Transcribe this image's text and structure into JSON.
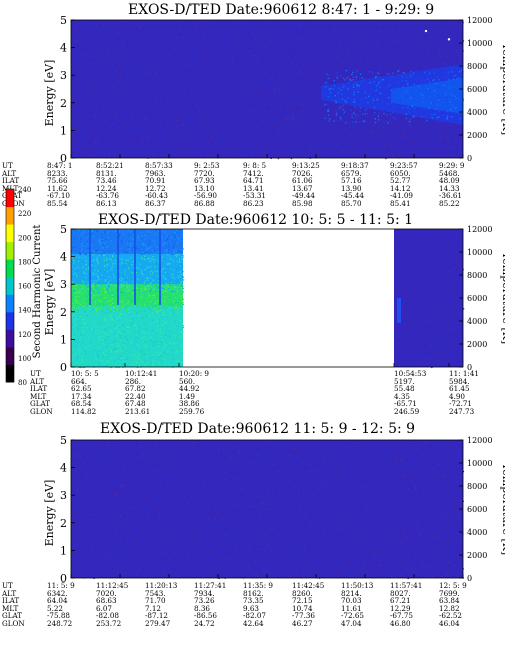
{
  "chart_data": [
    {
      "type": "heatmap",
      "title": "EXOS-D/TED   Date:960612  8:47: 1 - 9:29: 9",
      "ylabel": "Energy [eV]",
      "ylabel_right": "Temperature [K]",
      "ylim": [
        0,
        5
      ],
      "yticks": [
        "0",
        "1",
        "2",
        "3",
        "4",
        "5"
      ],
      "ylim_right": [
        0,
        12000
      ],
      "yticks_right": [
        "0",
        "2000",
        "4000",
        "6000",
        "8000",
        "10000",
        "12000"
      ],
      "x": [
        "8:47: 1",
        "8:52:21",
        "8:57:33",
        "9: 2:53",
        "9: 8: 5",
        "9:13:25",
        "9:18:37",
        "9:23:57",
        "9:29: 9"
      ],
      "rows": [
        {
          "label": "UT",
          "values": [
            "8:47: 1",
            "8:52:21",
            "8:57:33",
            "9: 2:53",
            "9: 8: 5",
            "9:13:25",
            "9:18:37",
            "9:23:57",
            "9:29: 9"
          ]
        },
        {
          "label": "ALT",
          "values": [
            "8233.",
            "8131.",
            "7963.",
            "7720.",
            "7412.",
            "7026.",
            "6579.",
            "6050.",
            "5468."
          ]
        },
        {
          "label": "ILAT",
          "values": [
            "75.66",
            "73.46",
            "70.91",
            "67.93",
            "64.71",
            "61.06",
            "57.16",
            "52.77",
            "48.09"
          ]
        },
        {
          "label": "MLT",
          "values": [
            "11.62",
            "12.24",
            "12.72",
            "13.10",
            "13.41",
            "13.67",
            "13.90",
            "14.12",
            "14.33"
          ]
        },
        {
          "label": "GLAT",
          "values": [
            "-67.10",
            "-63.76",
            "-60.43",
            "-56.90",
            "-53.31",
            "-49.44",
            "-45.44",
            "-41.09",
            "-36.61"
          ]
        },
        {
          "label": "GLON",
          "values": [
            "85.54",
            "86.13",
            "86.37",
            "86.88",
            "86.23",
            "85.98",
            "85.70",
            "85.41",
            "85.22"
          ]
        }
      ]
    },
    {
      "type": "heatmap",
      "title": "EXOS-D/TED   Date:960612  10: 5: 5 - 11: 5: 1",
      "ylabel": "Energy [eV]",
      "ylabel_right": "Temperature [K]",
      "ylim": [
        0,
        5
      ],
      "yticks": [
        "0",
        "1",
        "2",
        "3",
        "4",
        "5"
      ],
      "ylim_right": [
        0,
        12000
      ],
      "yticks_right": [
        "0",
        "2000",
        "4000",
        "6000",
        "8000",
        "10000",
        "12000"
      ],
      "colorbar": {
        "label": "Second Harmonic Current",
        "range": [
          80,
          240
        ],
        "ticks": [
          "80",
          "100",
          "120",
          "140",
          "160",
          "180",
          "200",
          "220",
          "240"
        ],
        "colors": [
          "#000000",
          "#3a0050",
          "#3c0fa0",
          "#1e32e6",
          "#0a82ff",
          "#00c8c8",
          "#00dc50",
          "#a0f000",
          "#ffff00",
          "#ffa000",
          "#ff0000"
        ]
      },
      "rows": [
        {
          "label": "UT",
          "values": [
            "10: 5: 5",
            "10:12:41",
            "10:20: 9",
            "10:54:53",
            "11: 1:41"
          ]
        },
        {
          "label": "ALT",
          "values": [
            "664.",
            "286.",
            "560.",
            "5197.",
            "5984."
          ]
        },
        {
          "label": "ILAT",
          "values": [
            "62.65",
            "67.82",
            "44.92",
            "55.48",
            "61.45"
          ]
        },
        {
          "label": "MLT",
          "values": [
            "17.34",
            "22.40",
            "1.49",
            "4.35",
            "4.90"
          ]
        },
        {
          "label": "GLAT",
          "values": [
            "68.54",
            "67.48",
            "38.86",
            "-65.71",
            "-72.71"
          ]
        },
        {
          "label": "GLON",
          "values": [
            "114.82",
            "213.61",
            "259.76",
            "246.59",
            "247.73"
          ]
        }
      ]
    },
    {
      "type": "heatmap",
      "title": "EXOS-D/TED   Date:960612  11: 5: 9 - 12: 5: 9",
      "ylabel": "Energy [eV]",
      "ylabel_right": "Temperature [K]",
      "ylim": [
        0,
        5
      ],
      "yticks": [
        "0",
        "1",
        "2",
        "3",
        "4",
        "5"
      ],
      "ylim_right": [
        0,
        12000
      ],
      "yticks_right": [
        "0",
        "2000",
        "4000",
        "6000",
        "8000",
        "10000",
        "12000"
      ],
      "x": [
        "11: 5: 9",
        "11:12:45",
        "11:20:13",
        "11:27:41",
        "11:35: 9",
        "11:42:45",
        "11:50:13",
        "11:57:41",
        "12: 5: 9"
      ],
      "rows": [
        {
          "label": "UT",
          "values": [
            "11: 5: 9",
            "11:12:45",
            "11:20:13",
            "11:27:41",
            "11:35: 9",
            "11:42:45",
            "11:50:13",
            "11:57:41",
            "12: 5: 9"
          ]
        },
        {
          "label": "ALT",
          "values": [
            "6342.",
            "7020.",
            "7543.",
            "7934.",
            "8162.",
            "8260.",
            "8214.",
            "8027.",
            "7699."
          ]
        },
        {
          "label": "ILAT",
          "values": [
            "64.04",
            "68.63",
            "71.70",
            "73.26",
            "73.35",
            "72.15",
            "70.03",
            "67.21",
            "63.84"
          ]
        },
        {
          "label": "MLT",
          "values": [
            "5.22",
            "6.07",
            "7.12",
            "8.36",
            "9.63",
            "10.74",
            "11.61",
            "12.29",
            "12.82"
          ]
        },
        {
          "label": "GLAT",
          "values": [
            "-75.88",
            "-82.08",
            "-87.12",
            "-86.56",
            "-82.07",
            "-77.36",
            "-72.65",
            "-67.75",
            "-62.52"
          ]
        },
        {
          "label": "GLON",
          "values": [
            "248.72",
            "253.72",
            "279.47",
            "24.72",
            "42.64",
            "46.27",
            "47.04",
            "46.80",
            "46.04"
          ]
        }
      ]
    }
  ]
}
